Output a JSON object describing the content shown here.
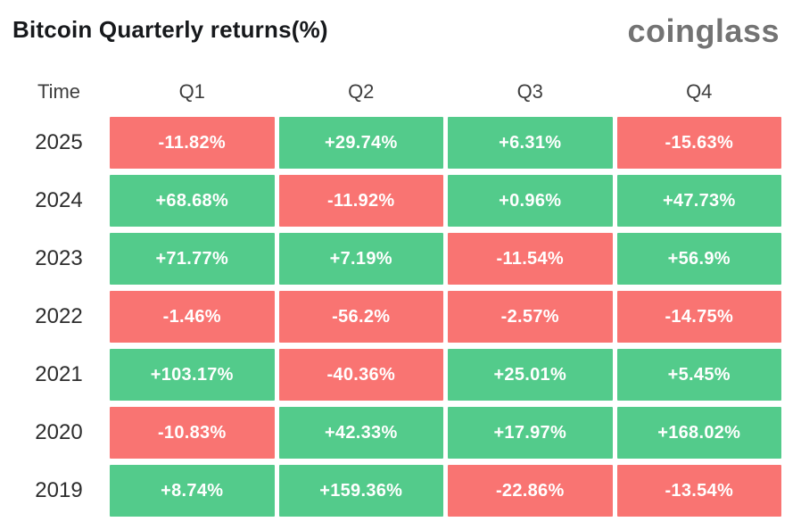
{
  "page": {
    "title": "Bitcoin Quarterly returns(%)",
    "brand": "coinglass"
  },
  "colors": {
    "positive": "#53CB8B",
    "negative": "#F97472",
    "cell_text": "#ffffff",
    "title_text": "#17191c",
    "brand_text": "#737373",
    "header_text": "#3e3e3e",
    "year_text": "#2d2d2d",
    "background": "#ffffff"
  },
  "table": {
    "columns": [
      "Time",
      "Q1",
      "Q2",
      "Q3",
      "Q4"
    ],
    "rows": [
      {
        "year": "2025",
        "values": [
          "-11.82%",
          "+29.74%",
          "+6.31%",
          "-15.63%"
        ]
      },
      {
        "year": "2024",
        "values": [
          "+68.68%",
          "-11.92%",
          "+0.96%",
          "+47.73%"
        ]
      },
      {
        "year": "2023",
        "values": [
          "+71.77%",
          "+7.19%",
          "-11.54%",
          "+56.9%"
        ]
      },
      {
        "year": "2022",
        "values": [
          "-1.46%",
          "-56.2%",
          "-2.57%",
          "-14.75%"
        ]
      },
      {
        "year": "2021",
        "values": [
          "+103.17%",
          "-40.36%",
          "+25.01%",
          "+5.45%"
        ]
      },
      {
        "year": "2020",
        "values": [
          "-10.83%",
          "+42.33%",
          "+17.97%",
          "+168.02%"
        ]
      },
      {
        "year": "2019",
        "values": [
          "+8.74%",
          "+159.36%",
          "-22.86%",
          "-13.54%"
        ]
      }
    ]
  },
  "chart_data": {
    "type": "heatmap",
    "title": "Bitcoin Quarterly returns(%)",
    "columns": [
      "Q1",
      "Q2",
      "Q3",
      "Q4"
    ],
    "row_labels": [
      "2025",
      "2024",
      "2023",
      "2022",
      "2021",
      "2020",
      "2019"
    ],
    "values_pct": [
      [
        -11.82,
        29.74,
        6.31,
        -15.63
      ],
      [
        68.68,
        -11.92,
        0.96,
        47.73
      ],
      [
        71.77,
        7.19,
        -11.54,
        56.9
      ],
      [
        -1.46,
        -56.2,
        -2.57,
        -14.75
      ],
      [
        103.17,
        -40.36,
        25.01,
        5.45
      ],
      [
        -10.83,
        42.33,
        17.97,
        168.02
      ],
      [
        8.74,
        159.36,
        -22.86,
        -13.54
      ]
    ],
    "color_rule": "positive values green (#53CB8B), negative values red (#F97472)",
    "legend_position": "none",
    "source_watermark": "coinglass"
  }
}
